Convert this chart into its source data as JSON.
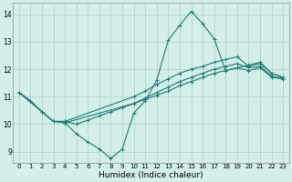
{
  "xlabel": "Humidex (Indice chaleur)",
  "xlim": [
    -0.5,
    23.5
  ],
  "ylim": [
    8.6,
    14.4
  ],
  "xticks": [
    0,
    1,
    2,
    3,
    4,
    5,
    6,
    7,
    8,
    9,
    10,
    11,
    12,
    13,
    14,
    15,
    16,
    17,
    18,
    19,
    20,
    21,
    22,
    23
  ],
  "yticks": [
    9,
    10,
    11,
    12,
    13,
    14
  ],
  "bg_color": "#d4eeea",
  "grid_color": "#b8d8d2",
  "line_color": "#1a7a6e",
  "line1_x": [
    0,
    1,
    2,
    3,
    4,
    5,
    6,
    7,
    8,
    9,
    10,
    11,
    12,
    13,
    14,
    15,
    16,
    17,
    18,
    19,
    20,
    21,
    22,
    23
  ],
  "line1_y": [
    11.15,
    10.85,
    10.45,
    10.1,
    10.05,
    9.65,
    9.35,
    9.1,
    8.75,
    9.1,
    10.4,
    10.85,
    11.6,
    13.05,
    13.6,
    14.1,
    13.65,
    13.1,
    11.95,
    12.05,
    11.95,
    12.05,
    11.7,
    11.65
  ],
  "line2_x": [
    0,
    1,
    2,
    3,
    4,
    10,
    11,
    12,
    13,
    14,
    15,
    16,
    17,
    18,
    19,
    20,
    21,
    22,
    23
  ],
  "line2_y": [
    11.15,
    10.85,
    10.45,
    10.1,
    10.05,
    10.75,
    10.95,
    11.15,
    11.35,
    11.55,
    11.7,
    11.85,
    12.0,
    12.1,
    12.2,
    12.05,
    12.1,
    11.75,
    11.65
  ],
  "line3_x": [
    0,
    3,
    4,
    10,
    11,
    12,
    13,
    14,
    15,
    16,
    17,
    18,
    19,
    20,
    21,
    22,
    23
  ],
  "line3_y": [
    11.15,
    10.1,
    10.1,
    11.0,
    11.2,
    11.45,
    11.65,
    11.85,
    12.0,
    12.1,
    12.25,
    12.35,
    12.45,
    12.1,
    12.2,
    11.85,
    11.7
  ],
  "line4_x": [
    3,
    4,
    5,
    6,
    7,
    8,
    9,
    10,
    11,
    12,
    13,
    14,
    15,
    16,
    17,
    18,
    19,
    20,
    21,
    22,
    23
  ],
  "line4_y": [
    10.1,
    10.1,
    10.0,
    10.15,
    10.3,
    10.45,
    10.6,
    10.75,
    10.9,
    11.05,
    11.2,
    11.4,
    11.55,
    11.7,
    11.85,
    11.95,
    12.05,
    12.15,
    12.25,
    11.85,
    11.7
  ]
}
